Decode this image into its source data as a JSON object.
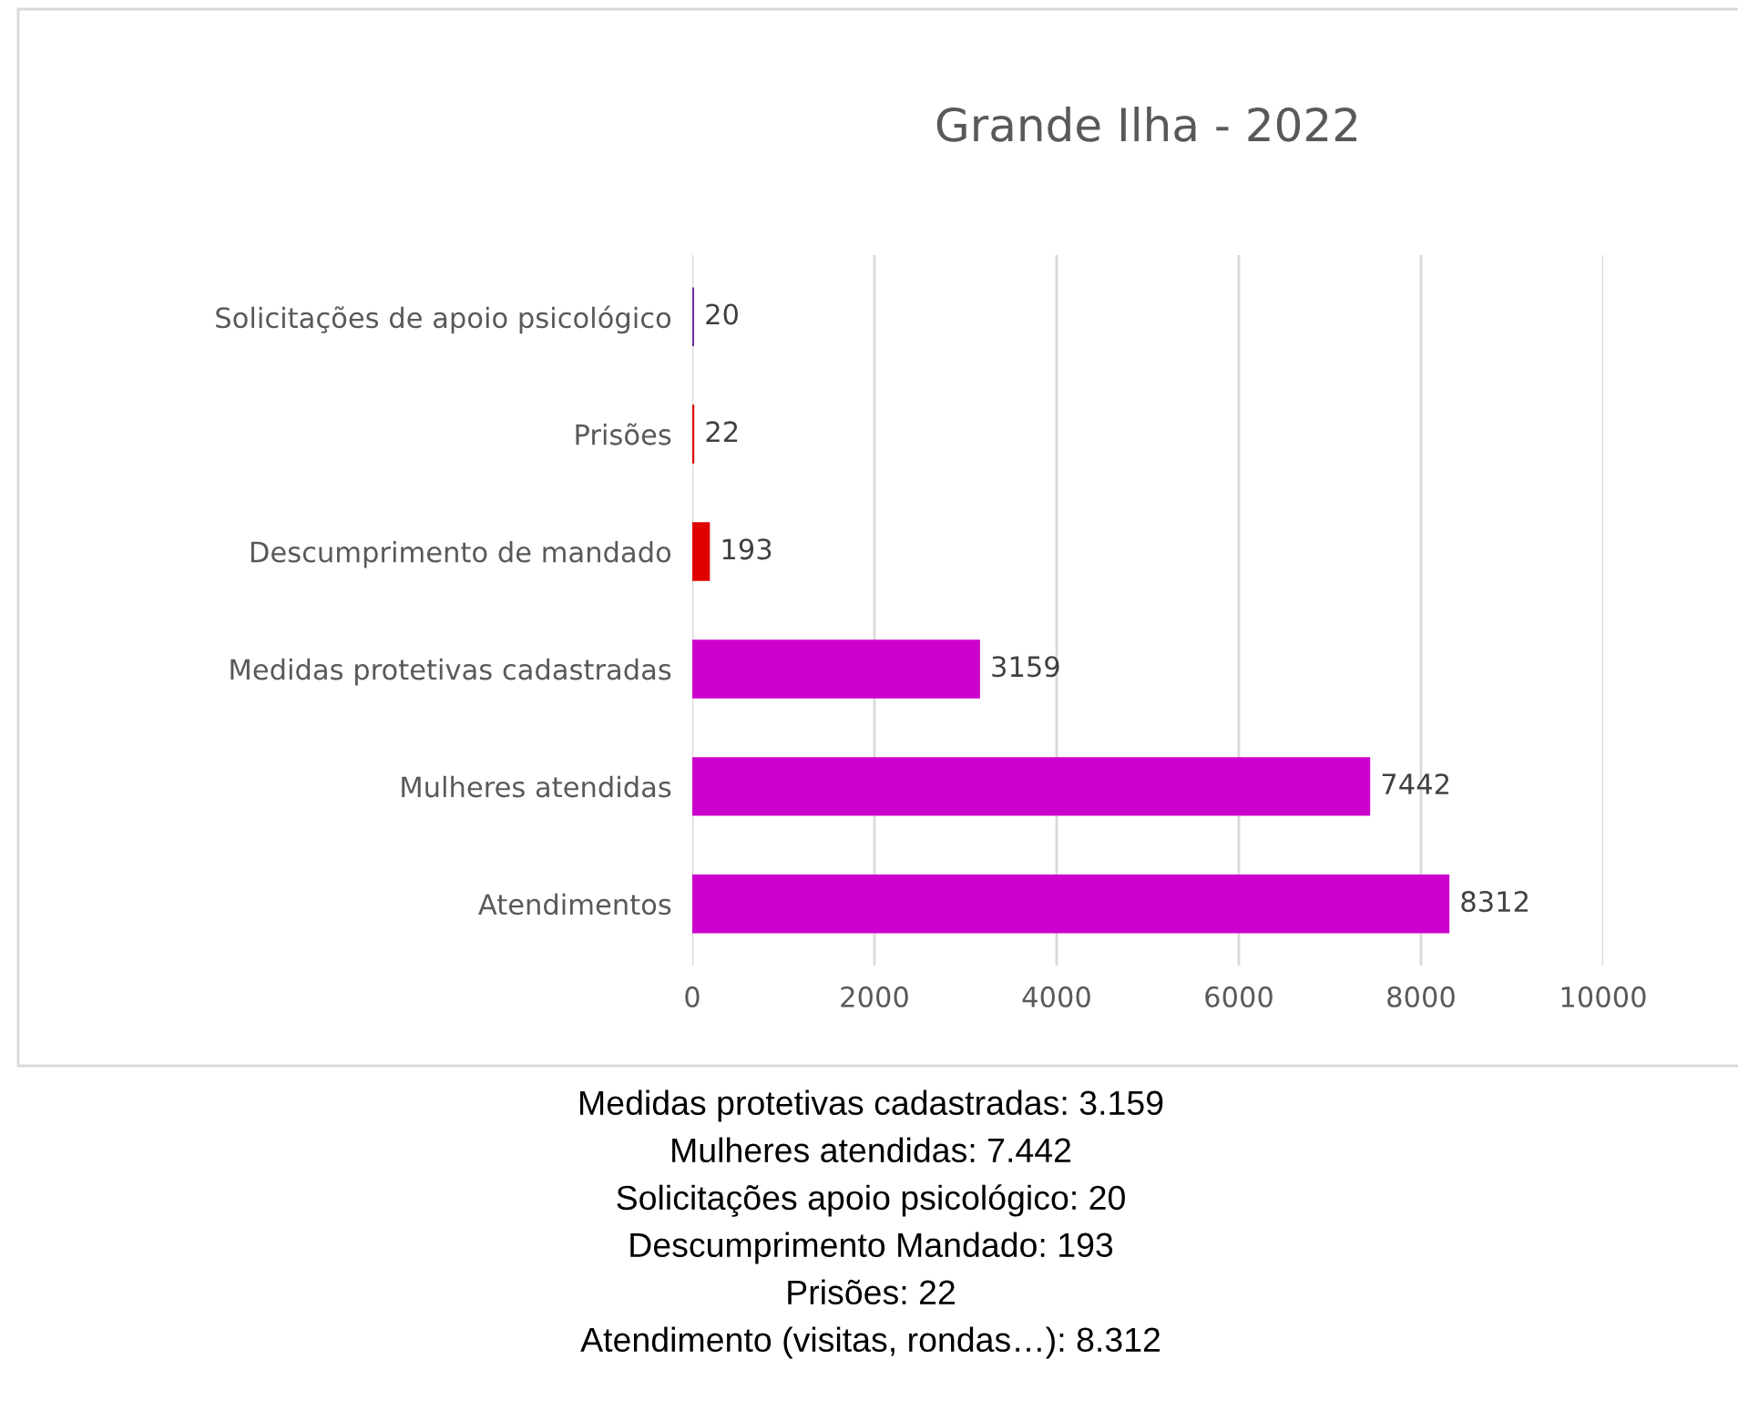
{
  "chart_data": {
    "type": "bar",
    "orientation": "horizontal",
    "title": "Grande Ilha - 2022",
    "categories": [
      "Solicitações de apoio psicológico",
      "Prisões",
      "Descumprimento de mandado",
      "Medidas protetivas cadastradas",
      "Mulheres atendidas",
      "Atendimentos"
    ],
    "values": [
      20,
      22,
      193,
      3159,
      7442,
      8312
    ],
    "colors": [
      "#7030a0",
      "#e00000",
      "#e00000",
      "#cc00cc",
      "#cc00cc",
      "#cc00cc"
    ],
    "xlim": [
      0,
      10000
    ],
    "xticks": [
      0,
      2000,
      4000,
      6000,
      8000,
      10000
    ],
    "grid": "x",
    "data_labels": true,
    "annotations": [
      "Medidas protetivas cadastradas: 3.159",
      "Mulheres atendidas: 7.442",
      "Solicitações apoio psicológico: 20",
      "Descumprimento Mandado: 193",
      "Prisões: 22",
      "Atendimento (visitas, rondas…): 8.312"
    ]
  }
}
